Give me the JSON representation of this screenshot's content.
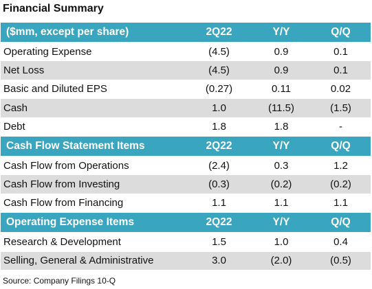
{
  "title": "Financial Summary",
  "sections": [
    {
      "header": [
        "($mm, except per share)",
        "2Q22",
        "Y/Y",
        "Q/Q"
      ],
      "rows": [
        [
          "Operating Expense",
          "(4.5)",
          "0.9",
          "0.1"
        ],
        [
          "Net Loss",
          "(4.5)",
          "0.9",
          "0.1"
        ],
        [
          "Basic and Diluted EPS",
          "(0.27)",
          "0.11",
          "0.02"
        ],
        [
          "Cash",
          "1.0",
          "(11.5)",
          "(1.5)"
        ],
        [
          "Debt",
          "1.8",
          "1.8",
          "-"
        ]
      ]
    },
    {
      "header": [
        "Cash Flow Statement Items",
        "2Q22",
        "Y/Y",
        "Q/Q"
      ],
      "rows": [
        [
          "Cash Flow from Operations",
          "(2.4)",
          "0.3",
          "1.2"
        ],
        [
          "Cash Flow from Investing",
          "(0.3)",
          "(0.2)",
          "(0.2)"
        ],
        [
          "Cash Flow from Financing",
          "1.1",
          "1.1",
          "1.1"
        ]
      ]
    },
    {
      "header": [
        "Operating Expense Items",
        "2Q22",
        "Y/Y",
        "Q/Q"
      ],
      "rows": [
        [
          "Research & Development",
          "1.5",
          "1.0",
          "0.4"
        ],
        [
          "Selling, General & Administrative",
          "3.0",
          "(2.0)",
          "(0.5)"
        ]
      ]
    }
  ],
  "source": "Source: Company Filings 10-Q"
}
